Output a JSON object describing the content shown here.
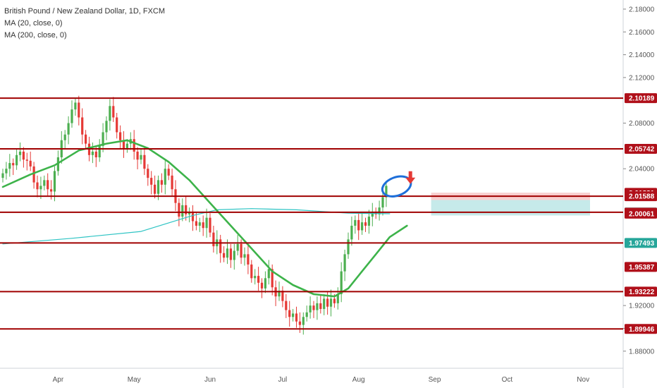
{
  "header": {
    "title": "British Pound / New Zealand Dollar, 1D, FXCM",
    "ma20_label": "MA (20, close, 0)",
    "ma200_label": "MA (200, close, 0)"
  },
  "colors": {
    "up": "#4caf50",
    "down": "#e53935",
    "level": "#a00000",
    "ma20": "#3db34a",
    "ma200": "#2ec4c4",
    "annotation": "#1e6fd9",
    "arrow": "#e53935",
    "stop_zone": "#f8cfcf",
    "target_zone": "#c6eaea",
    "tag_red": "#b0101a",
    "tag_grey": "#a7a7a7",
    "tag_green": "#26a69a"
  },
  "chart_data": {
    "type": "candlestick",
    "title": "British Pound / New Zealand Dollar, 1D, FXCM",
    "ylim": [
      1.865,
      2.188
    ],
    "y_ticks": [
      1.88,
      1.9,
      1.92,
      1.94,
      1.96,
      1.98,
      2.0,
      2.02,
      2.04,
      2.06,
      2.08,
      2.1,
      2.12,
      2.14,
      2.16,
      2.18
    ],
    "y_tick_labels": [
      "1.88000",
      "1.90000",
      "1.92000",
      "",
      "",
      "",
      "",
      "",
      "2.04000",
      "",
      "2.08000",
      "",
      "2.12000",
      "2.14000",
      "2.16000",
      "2.18000"
    ],
    "x_labels": [
      {
        "label": "Apr",
        "idx": 16
      },
      {
        "label": "May",
        "idx": 38
      },
      {
        "label": "Jun",
        "idx": 60
      },
      {
        "label": "Jul",
        "idx": 81
      },
      {
        "label": "Aug",
        "idx": 103
      },
      {
        "label": "Sep",
        "idx": 125
      },
      {
        "label": "Oct",
        "idx": 146
      },
      {
        "label": "Nov",
        "idx": 168
      }
    ],
    "x_count": 185,
    "closes": [
      2.036,
      2.04,
      2.045,
      2.043,
      2.052,
      2.055,
      2.048,
      2.047,
      2.042,
      2.028,
      2.022,
      2.025,
      2.03,
      2.022,
      2.02,
      2.038,
      2.05,
      2.065,
      2.07,
      2.08,
      2.092,
      2.098,
      2.085,
      2.07,
      2.062,
      2.052,
      2.055,
      2.05,
      2.06,
      2.072,
      2.082,
      2.095,
      2.085,
      2.072,
      2.065,
      2.058,
      2.062,
      2.066,
      2.055,
      2.048,
      2.052,
      2.04,
      2.032,
      2.026,
      2.018,
      2.03,
      2.026,
      2.04,
      2.034,
      2.022,
      2.01,
      1.998,
      2.008,
      2.0,
      2.002,
      1.994,
      1.99,
      1.993,
      1.988,
      1.997,
      1.984,
      1.972,
      1.978,
      1.966,
      1.962,
      1.97,
      1.96,
      1.968,
      1.974,
      1.962,
      1.965,
      1.956,
      1.944,
      1.946,
      1.94,
      1.935,
      1.944,
      1.952,
      1.936,
      1.928,
      1.933,
      1.924,
      1.916,
      1.91,
      1.913,
      1.906,
      1.903,
      1.91,
      1.914,
      1.92,
      1.916,
      1.922,
      1.917,
      1.926,
      1.919,
      1.926,
      1.922,
      1.93,
      1.95,
      1.965,
      1.978,
      1.99,
      1.995,
      1.986,
      1.993,
      1.99,
      1.998,
      2.002,
      2.0,
      2.006,
      2.015,
      2.025
    ],
    "horizontal_levels": [
      {
        "value": 2.10189,
        "label": "2.10189",
        "tag": "red"
      },
      {
        "value": 2.05742,
        "label": "2.05742",
        "tag": "red"
      },
      {
        "value": 2.01588,
        "label": "2.01588",
        "tag": "red"
      },
      {
        "value": 2.00184,
        "label": "2.00184",
        "tag": "grey"
      },
      {
        "value": 1.97493,
        "label": "1.97493",
        "tag": "green"
      },
      {
        "value": 1.93222,
        "label": "1.93222",
        "tag": "red"
      },
      {
        "value": 1.89946,
        "label": "1.89946",
        "tag": "red"
      }
    ],
    "price_tags": [
      {
        "value": 2.01881,
        "label": "2.01881",
        "tag": "red"
      },
      {
        "value": 2.01588,
        "label": "2.01588",
        "tag": "red"
      },
      {
        "value": 2.00184,
        "label": "2.00184",
        "tag": "grey"
      },
      {
        "value": 2.00126,
        "label": "2.00126",
        "tag": "red"
      },
      {
        "value": 2.00126,
        "label": "2.00126",
        "tag": "red"
      },
      {
        "value": 2.00061,
        "label": "2.00061",
        "tag": "red"
      },
      {
        "value": 1.97493,
        "label": "1.97493",
        "tag": "green"
      },
      {
        "value": 1.95387,
        "label": "1.95387",
        "tag": "red"
      },
      {
        "value": 1.93222,
        "label": "1.93222",
        "tag": "red"
      },
      {
        "value": 2.10189,
        "label": "2.10189",
        "tag": "red"
      },
      {
        "value": 2.05742,
        "label": "2.05742",
        "tag": "red"
      },
      {
        "value": 1.89946,
        "label": "1.89946",
        "tag": "red"
      }
    ],
    "position": {
      "entry": 2.0126,
      "stop": 2.019,
      "target": 1.999,
      "start_idx": 124,
      "end_idx": 170
    },
    "ma200": [
      {
        "idx": 0,
        "v": 1.974
      },
      {
        "idx": 20,
        "v": 1.979
      },
      {
        "idx": 40,
        "v": 1.985
      },
      {
        "idx": 55,
        "v": 1.999
      },
      {
        "idx": 62,
        "v": 2.004
      },
      {
        "idx": 72,
        "v": 2.005
      },
      {
        "idx": 85,
        "v": 2.004
      },
      {
        "idx": 100,
        "v": 2.001
      },
      {
        "idx": 112,
        "v": 2.0005
      }
    ],
    "ma20": [
      {
        "idx": 0,
        "v": 2.024
      },
      {
        "idx": 8,
        "v": 2.035
      },
      {
        "idx": 15,
        "v": 2.043
      },
      {
        "idx": 22,
        "v": 2.056
      },
      {
        "idx": 30,
        "v": 2.062
      },
      {
        "idx": 36,
        "v": 2.065
      },
      {
        "idx": 42,
        "v": 2.058
      },
      {
        "idx": 48,
        "v": 2.046
      },
      {
        "idx": 54,
        "v": 2.03
      },
      {
        "idx": 60,
        "v": 2.01
      },
      {
        "idx": 66,
        "v": 1.99
      },
      {
        "idx": 72,
        "v": 1.97
      },
      {
        "idx": 78,
        "v": 1.95
      },
      {
        "idx": 84,
        "v": 1.938
      },
      {
        "idx": 90,
        "v": 1.93
      },
      {
        "idx": 96,
        "v": 1.928
      },
      {
        "idx": 100,
        "v": 1.935
      },
      {
        "idx": 104,
        "v": 1.95
      },
      {
        "idx": 108,
        "v": 1.965
      },
      {
        "idx": 112,
        "v": 1.98
      },
      {
        "idx": 117,
        "v": 1.99
      }
    ],
    "annotation_ellipse_idx": 114,
    "annotation_ellipse_v": 2.0245,
    "arrow_idx": 118,
    "arrow_v": 2.031
  }
}
